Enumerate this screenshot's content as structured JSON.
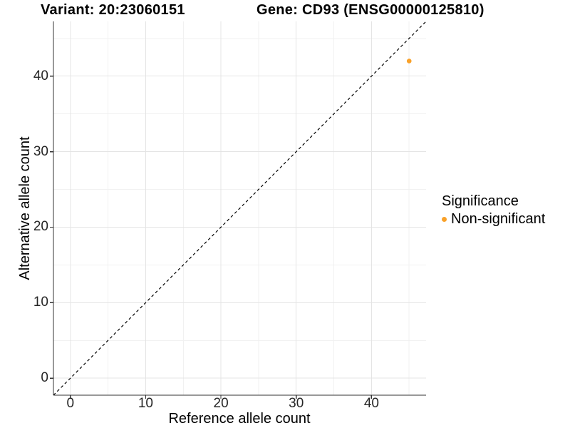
{
  "chart_data": {
    "type": "scatter",
    "title_left": "Variant: 20:23060151",
    "title_right": "Gene: CD93 (ENSG00000125810)",
    "xlabel": "Reference allele count",
    "ylabel": "Alternative allele count",
    "xlim": [
      -2.25,
      47.25
    ],
    "ylim": [
      -2.25,
      47.25
    ],
    "x_ticks": [
      0,
      10,
      20,
      30,
      40
    ],
    "y_ticks": [
      0,
      10,
      20,
      30,
      40
    ],
    "x_minor_ticks": [
      5,
      15,
      25,
      35,
      45
    ],
    "y_minor_ticks": [
      5,
      15,
      25,
      35,
      45
    ],
    "grid": "major+minor",
    "legend_position": "right",
    "points": [
      {
        "x": 45,
        "y": 42,
        "series": "Non-significant",
        "color": "#F9A129"
      }
    ],
    "reference_line": {
      "type": "identity y=x",
      "style": "dashed",
      "color": "#000000"
    },
    "legend": {
      "title": "Significance",
      "items": [
        {
          "label": "Non-significant",
          "color": "#F9A129",
          "marker": "circle"
        }
      ]
    },
    "colors": {
      "background": "#FFFFFF",
      "axis_line": "#333333",
      "grid_major": "#E4E4E4",
      "grid_minor": "#F1F1F1",
      "tick_text": "#262626",
      "text": "#000000"
    }
  }
}
